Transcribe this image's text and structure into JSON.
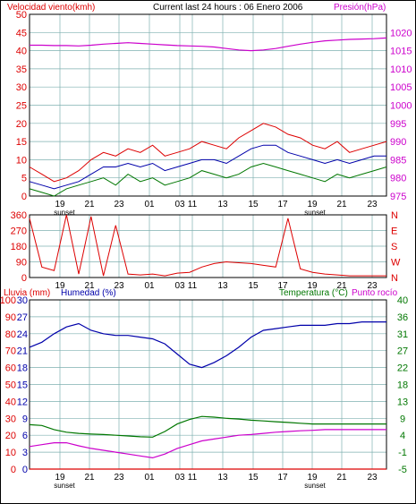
{
  "header": {
    "left_label": "Velocidad viento(kmh)",
    "center_label": "Current last 24 hours : 06 Enero 2006",
    "right_label": "Presión(hPa)"
  },
  "colors": {
    "red": "#dd0000",
    "blue": "#0000aa",
    "green": "#007700",
    "magenta": "#cc00cc",
    "grid": "#7fb0b0"
  },
  "chart_data": [
    {
      "type": "line",
      "name": "wind-pressure",
      "x_ticks": [
        "19",
        "21",
        "23",
        "01",
        "03",
        "11",
        "13",
        "15",
        "17",
        "19",
        "21",
        "23"
      ],
      "x_sublabel": "sunset",
      "y_left": {
        "label": "Velocidad viento(kmh)",
        "ticks": [
          0,
          5,
          10,
          15,
          20,
          25,
          30,
          35,
          40,
          45,
          50
        ],
        "range": [
          0,
          50
        ]
      },
      "y_right": {
        "label": "Presión(hPa)",
        "ticks": [
          975,
          980,
          985,
          990,
          995,
          1000,
          1005,
          1010,
          1015,
          1020
        ],
        "range": [
          975,
          1025
        ]
      },
      "series": [
        {
          "color": "magenta",
          "axis": "right",
          "values": [
            1016.5,
            1016.5,
            1016.4,
            1016.4,
            1016.3,
            1016.5,
            1016.8,
            1017.0,
            1017.2,
            1017.0,
            1016.8,
            1016.6,
            1016.4,
            1016.3,
            1016.2,
            1016.0,
            1015.6,
            1015.2,
            1015.0,
            1015.2,
            1015.6,
            1016.2,
            1016.8,
            1017.3,
            1017.7,
            1017.9,
            1018.1,
            1018.2,
            1018.3,
            1018.5
          ]
        },
        {
          "color": "red",
          "axis": "left",
          "values": [
            8,
            6,
            4,
            5,
            7,
            10,
            12,
            11,
            13,
            12,
            14,
            11,
            12,
            13,
            15,
            14,
            13,
            16,
            18,
            20,
            19,
            17,
            16,
            14,
            13,
            15,
            12,
            13,
            14,
            15
          ]
        },
        {
          "color": "blue",
          "axis": "left",
          "values": [
            4,
            3,
            2,
            3,
            4,
            6,
            8,
            8,
            9,
            8,
            9,
            7,
            8,
            9,
            10,
            10,
            9,
            11,
            13,
            14,
            14,
            12,
            11,
            10,
            9,
            10,
            9,
            10,
            11,
            11
          ]
        },
        {
          "color": "green",
          "axis": "left",
          "values": [
            2,
            1,
            0,
            2,
            3,
            4,
            5,
            3,
            6,
            4,
            5,
            3,
            4,
            5,
            7,
            6,
            5,
            6,
            8,
            9,
            8,
            7,
            6,
            5,
            4,
            6,
            5,
            6,
            7,
            8
          ]
        }
      ]
    },
    {
      "type": "line",
      "name": "wind-direction",
      "x_ticks": [
        "19",
        "21",
        "23",
        "01",
        "03",
        "11",
        "13",
        "15",
        "17",
        "19",
        "21",
        "23"
      ],
      "y_left": {
        "ticks": [
          0,
          90,
          180,
          270,
          360
        ],
        "range": [
          0,
          360
        ]
      },
      "y_right": {
        "ticks": [
          "N",
          "W",
          "S",
          "E",
          "N"
        ]
      },
      "series": [
        {
          "color": "red",
          "values": [
            340,
            60,
            40,
            360,
            20,
            350,
            10,
            300,
            20,
            15,
            20,
            10,
            25,
            30,
            60,
            80,
            90,
            85,
            80,
            70,
            60,
            340,
            50,
            30,
            20,
            15,
            10,
            10,
            10,
            10
          ]
        }
      ]
    },
    {
      "type": "line",
      "name": "humidity-temperature",
      "x_ticks": [
        "19",
        "21",
        "23",
        "01",
        "03",
        "11",
        "13",
        "15",
        "17",
        "19",
        "21",
        "23"
      ],
      "x_sublabel": "sunset",
      "y_left_outer": {
        "label": "Lluvia (mm)",
        "ticks": [
          0,
          10,
          20,
          30,
          40,
          50,
          60,
          70,
          80,
          90,
          100
        ],
        "range": [
          0,
          100
        ]
      },
      "y_left_inner": {
        "label": "Humedad (%)",
        "ticks": [
          0,
          3,
          6,
          9,
          12,
          15,
          18,
          21,
          24,
          27,
          30
        ]
      },
      "y_right": {
        "label": "Temperatura (°C)Punto rocío",
        "ticks": [
          -5,
          -1,
          4,
          9,
          13,
          18,
          22,
          27,
          31,
          36,
          40
        ],
        "range": [
          -5,
          40
        ]
      },
      "legend": [
        "Lluvia (mm)",
        "Humedad (%)",
        "Temperatura (°C)",
        "Punto rocío"
      ],
      "series": [
        {
          "color": "blue",
          "axis": "left_outer",
          "values": [
            72,
            75,
            80,
            84,
            86,
            82,
            80,
            79,
            79,
            78,
            77,
            74,
            68,
            62,
            60,
            63,
            67,
            72,
            78,
            82,
            83,
            84,
            85,
            85,
            85,
            86,
            86,
            87,
            87,
            87
          ]
        },
        {
          "color": "green",
          "axis": "right",
          "values": [
            6.8,
            6.6,
            5.5,
            4.8,
            4.5,
            4.3,
            4.2,
            4.0,
            3.8,
            3.6,
            3.5,
            5.0,
            7.0,
            8.2,
            9.0,
            8.8,
            8.5,
            8.3,
            8.0,
            7.8,
            7.6,
            7.4,
            7.2,
            7.0,
            7.0,
            7.0,
            7.0,
            7.0,
            7.0,
            7.0
          ]
        },
        {
          "color": "magenta",
          "axis": "right",
          "values": [
            1.0,
            1.5,
            2.0,
            2.0,
            1.2,
            0.5,
            0.0,
            -0.5,
            -1.0,
            -1.5,
            -2.0,
            -1.0,
            0.5,
            1.5,
            2.5,
            3.0,
            3.5,
            4.0,
            4.2,
            4.5,
            4.8,
            5.0,
            5.2,
            5.3,
            5.5,
            5.5,
            5.5,
            5.5,
            5.5,
            5.5
          ]
        },
        {
          "color": "red",
          "axis": "left_outer",
          "values": [
            0,
            0,
            0,
            0,
            0,
            0,
            0,
            0,
            0,
            0,
            0,
            0,
            0,
            0,
            0,
            0,
            0,
            0,
            0,
            0,
            0,
            0,
            0,
            0,
            0,
            0,
            0,
            0,
            0,
            0
          ]
        }
      ]
    }
  ]
}
